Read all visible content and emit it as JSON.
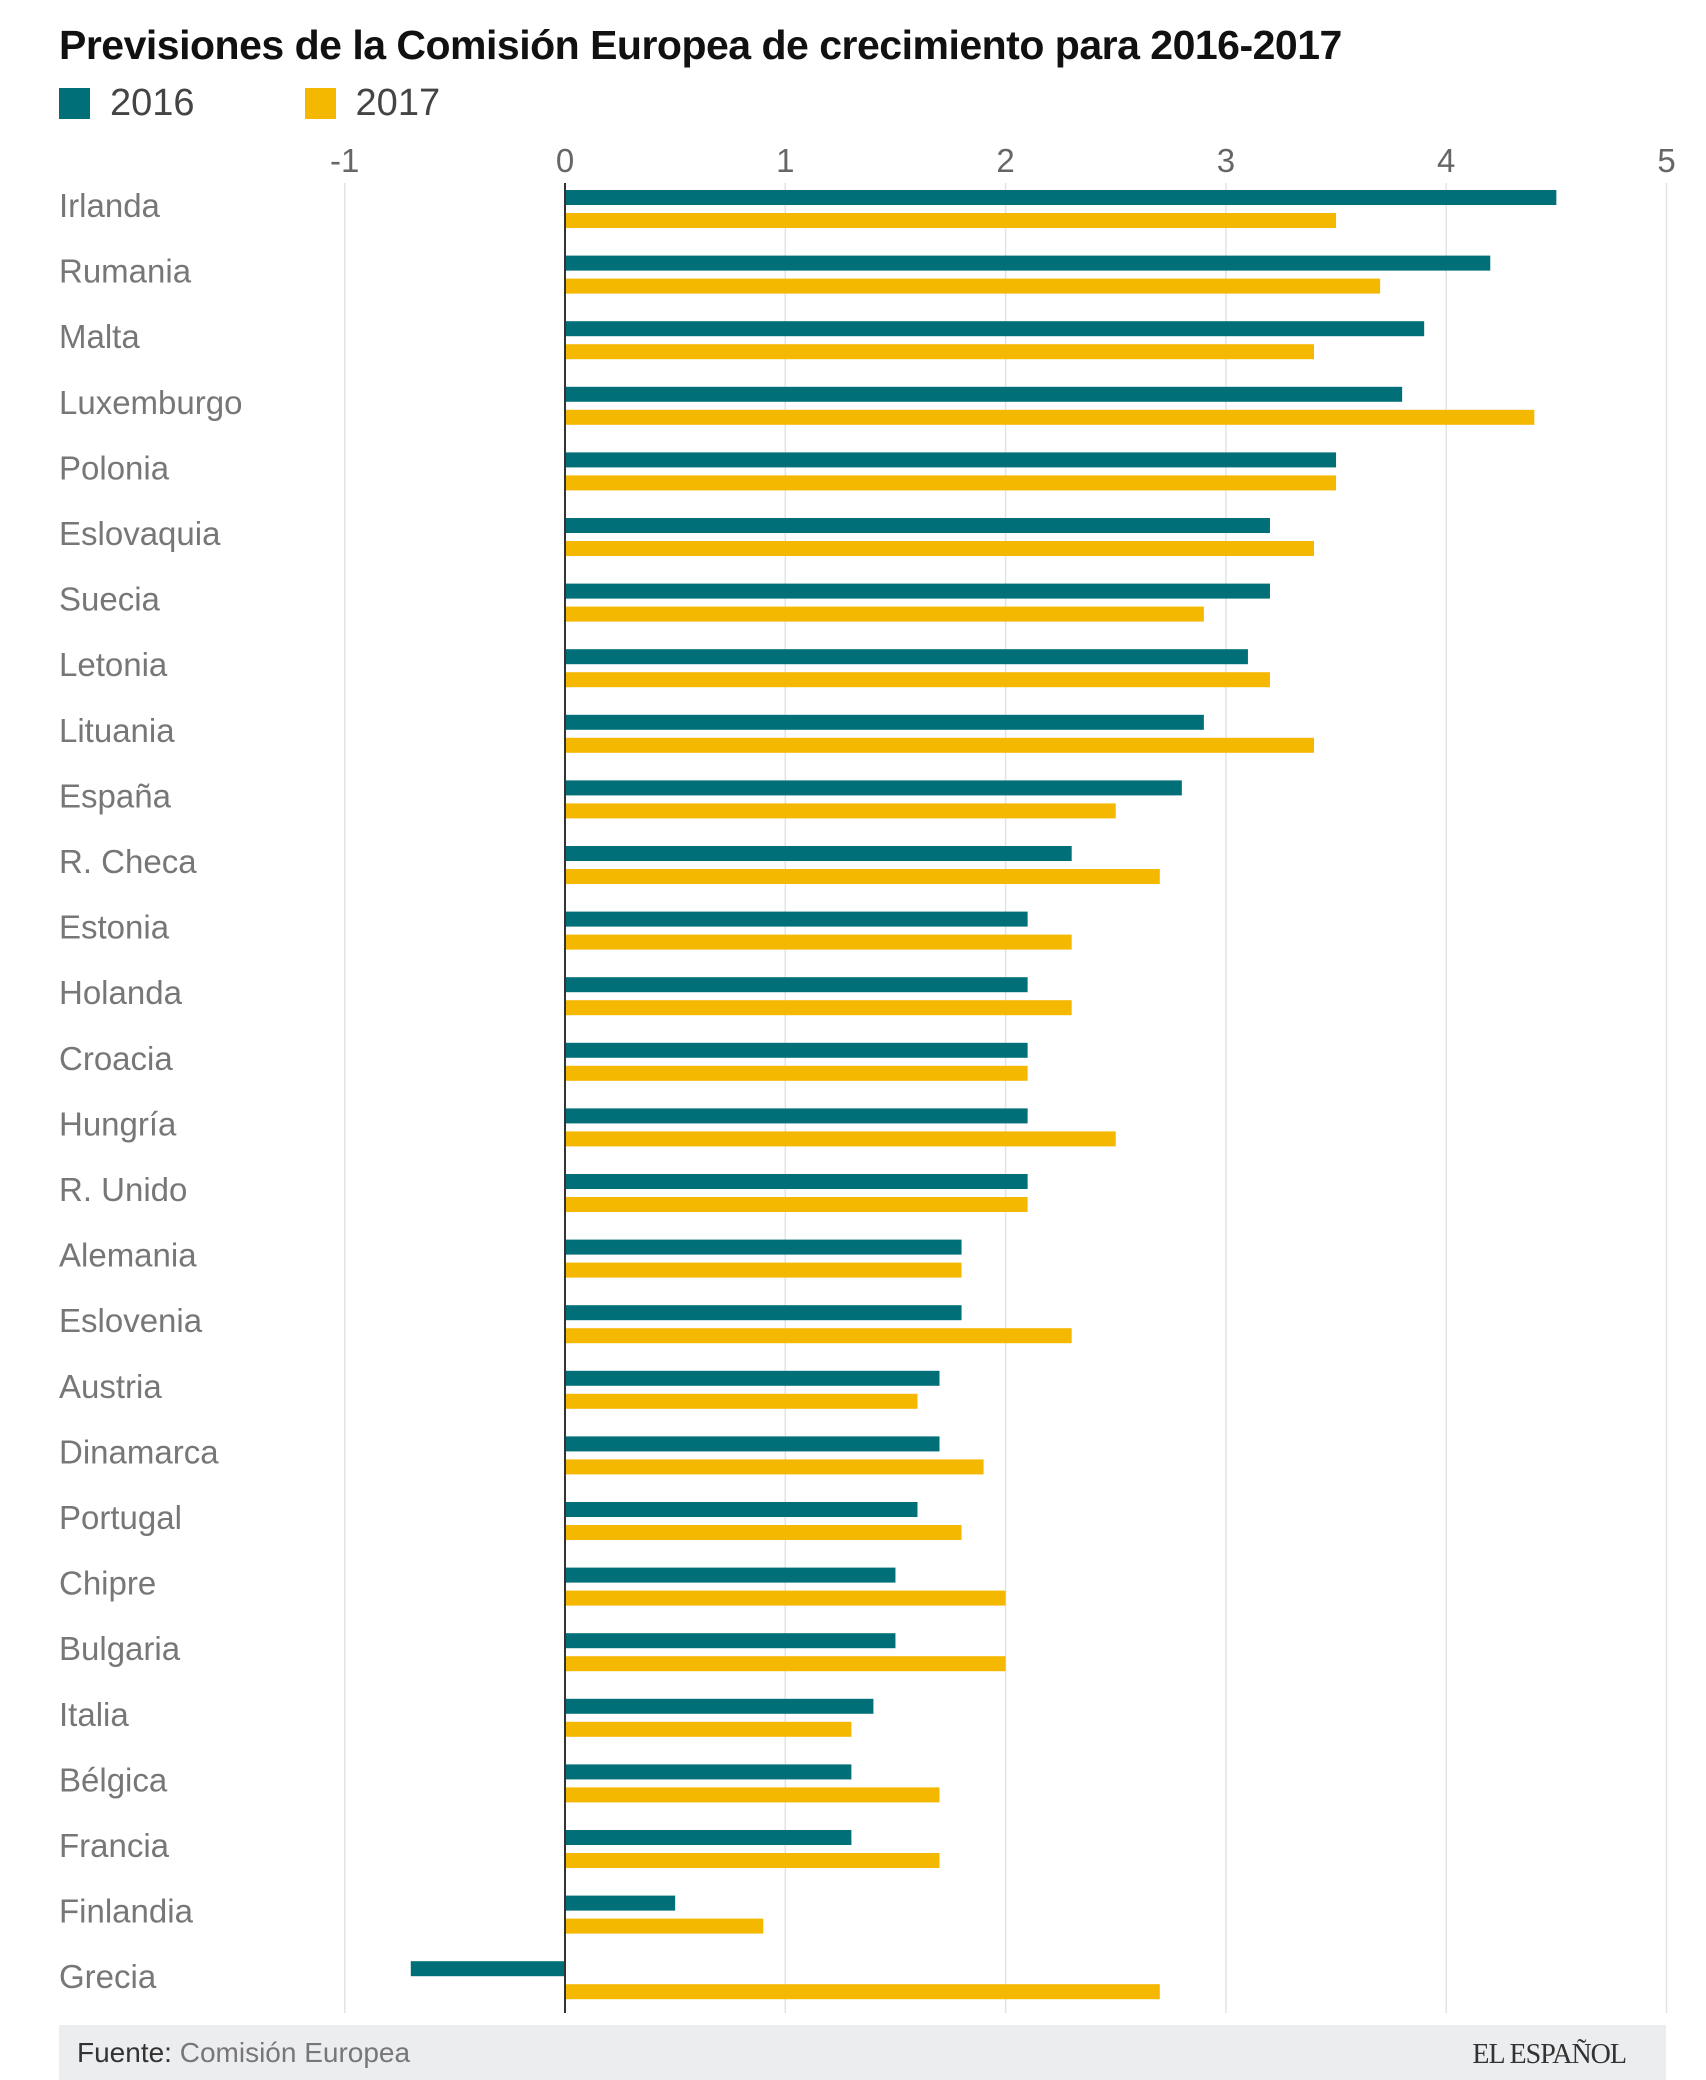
{
  "chart_data": {
    "type": "bar",
    "orientation": "horizontal",
    "title": "Previsiones de la Comisión Europea de crecimiento para 2016-2017",
    "categories": [
      "Irlanda",
      "Rumania",
      "Malta",
      "Luxemburgo",
      "Polonia",
      "Eslovaquia",
      "Suecia",
      "Letonia",
      "Lituania",
      "España",
      "R. Checa",
      "Estonia",
      "Holanda",
      "Croacia",
      "Hungría",
      "R. Unido",
      "Alemania",
      "Eslovenia",
      "Austria",
      "Dinamarca",
      "Portugal",
      "Chipre",
      "Bulgaria",
      "Italia",
      "Bélgica",
      "Francia",
      "Finlandia",
      "Grecia"
    ],
    "series": [
      {
        "name": "2016",
        "color": "#006f77",
        "values": [
          4.5,
          4.2,
          3.9,
          3.8,
          3.5,
          3.2,
          3.2,
          3.1,
          2.9,
          2.8,
          2.3,
          2.1,
          2.1,
          2.1,
          2.1,
          2.1,
          1.8,
          1.8,
          1.7,
          1.7,
          1.6,
          1.5,
          1.5,
          1.4,
          1.3,
          1.3,
          0.5,
          -0.7
        ]
      },
      {
        "name": "2017",
        "color": "#f5b800",
        "values": [
          3.5,
          3.7,
          3.4,
          4.4,
          3.5,
          3.4,
          2.9,
          3.2,
          3.4,
          2.5,
          2.7,
          2.3,
          2.3,
          2.1,
          2.5,
          2.1,
          1.8,
          2.3,
          1.6,
          1.9,
          1.8,
          2.0,
          2.0,
          1.3,
          1.7,
          1.7,
          0.9,
          2.7
        ]
      }
    ],
    "xlim": [
      -1,
      5
    ],
    "xticks": [
      "-1",
      "0",
      "1",
      "2",
      "3",
      "4",
      "5"
    ],
    "grid": true,
    "legend": "top-left"
  },
  "footer": {
    "source_label": "Fuente:",
    "source": "Comisión Europea",
    "logo": "EL ESPAÑOL"
  }
}
